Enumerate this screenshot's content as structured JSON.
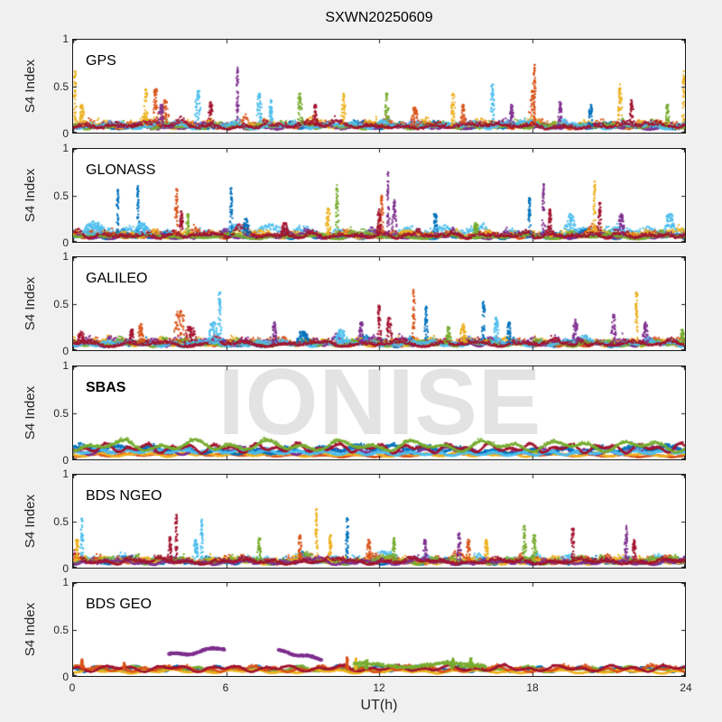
{
  "watermark": "IONISE",
  "chart_data": {
    "type": "scatter",
    "title": "SXWN20250609",
    "xlabel": "UT(h)",
    "ylabel": "S4 Index",
    "xlim": [
      0,
      24
    ],
    "ylim": [
      0,
      1
    ],
    "xticks": [
      0,
      6,
      12,
      18,
      24
    ],
    "yticks": [
      0,
      0.5,
      1
    ],
    "grid": false,
    "legend": "none",
    "axis_color": "#1a1a1a",
    "figure_bg": "#f0f0f0",
    "panel_bg": "#ffffff",
    "watermark_color": "#e3e3e3",
    "palette": {
      "blue": "#0072BD",
      "orange": "#D95319",
      "yellow": "#EDB120",
      "purple": "#7E2F8E",
      "green": "#77AC30",
      "lightblue": "#4DBEEE",
      "darkred": "#A2142F"
    },
    "panels": [
      {
        "label": "GPS",
        "bold": false,
        "bumps": 16,
        "bump_amp": 0.12,
        "points": 1100,
        "series": [
          {
            "color": "blue",
            "level": 0.06,
            "noise": 0.03
          },
          {
            "color": "orange",
            "level": 0.07,
            "noise": 0.04
          },
          {
            "color": "yellow",
            "level": 0.07,
            "noise": 0.045
          },
          {
            "color": "purple",
            "level": 0.055,
            "noise": 0.035
          },
          {
            "color": "green",
            "level": 0.06,
            "noise": 0.035
          },
          {
            "color": "lightblue",
            "level": 0.065,
            "noise": 0.04
          },
          {
            "color": "darkred",
            "level": 0.065,
            "noise": 0.04
          }
        ],
        "spikes": [
          [
            0.08,
            0.66,
            "yellow",
            0.06
          ],
          [
            0.35,
            0.3,
            "yellow",
            0.15
          ],
          [
            2.85,
            0.47,
            "yellow",
            0.1
          ],
          [
            3.25,
            0.47,
            "orange",
            0.15
          ],
          [
            3.6,
            0.35,
            "orange",
            0.2
          ],
          [
            3.45,
            0.3,
            "purple",
            0.15
          ],
          [
            4.9,
            0.45,
            "lightblue",
            0.15
          ],
          [
            5.4,
            0.33,
            "darkred",
            0.12
          ],
          [
            6.45,
            0.7,
            "purple",
            0.06
          ],
          [
            7.3,
            0.42,
            "lightblue",
            0.12
          ],
          [
            7.75,
            0.35,
            "lightblue",
            0.1
          ],
          [
            8.9,
            0.42,
            "green",
            0.12
          ],
          [
            9.5,
            0.3,
            "darkred",
            0.1
          ],
          [
            10.6,
            0.42,
            "yellow",
            0.1
          ],
          [
            12.3,
            0.42,
            "green",
            0.1
          ],
          [
            13.4,
            0.27,
            "orange",
            0.2
          ],
          [
            14.9,
            0.42,
            "yellow",
            0.1
          ],
          [
            15.3,
            0.3,
            "orange",
            0.12
          ],
          [
            16.45,
            0.52,
            "lightblue",
            0.1
          ],
          [
            17.2,
            0.3,
            "purple",
            0.1
          ],
          [
            18.1,
            0.73,
            "orange",
            0.07
          ],
          [
            18.0,
            0.45,
            "orange",
            0.15
          ],
          [
            19.1,
            0.33,
            "purple",
            0.1
          ],
          [
            20.3,
            0.3,
            "blue",
            0.1
          ],
          [
            21.45,
            0.52,
            "yellow",
            0.1
          ],
          [
            21.9,
            0.35,
            "darkred",
            0.1
          ],
          [
            23.3,
            0.3,
            "green",
            0.1
          ],
          [
            23.95,
            0.66,
            "yellow",
            0.06
          ]
        ],
        "segments": []
      },
      {
        "label": "GLONASS",
        "bold": false,
        "bumps": 14,
        "bump_amp": 0.13,
        "points": 1100,
        "series": [
          {
            "color": "lightblue",
            "level": 0.09,
            "noise": 0.05
          },
          {
            "color": "blue",
            "level": 0.05,
            "noise": 0.03
          },
          {
            "color": "orange",
            "level": 0.06,
            "noise": 0.035
          },
          {
            "color": "yellow",
            "level": 0.065,
            "noise": 0.04
          },
          {
            "color": "purple",
            "level": 0.05,
            "noise": 0.03
          },
          {
            "color": "green",
            "level": 0.05,
            "noise": 0.025
          },
          {
            "color": "darkred",
            "level": 0.06,
            "noise": 0.04
          }
        ],
        "spikes": [
          [
            0.8,
            0.22,
            "lightblue",
            0.5
          ],
          [
            1.76,
            0.56,
            "blue",
            0.06
          ],
          [
            2.54,
            0.6,
            "blue",
            0.06
          ],
          [
            2.7,
            0.2,
            "lightblue",
            0.4
          ],
          [
            4.05,
            0.57,
            "orange",
            0.08
          ],
          [
            4.25,
            0.33,
            "darkred",
            0.1
          ],
          [
            4.5,
            0.3,
            "green",
            0.08
          ],
          [
            6.2,
            0.58,
            "blue",
            0.07
          ],
          [
            6.8,
            0.25,
            "blue",
            0.15
          ],
          [
            8.3,
            0.2,
            "darkred",
            0.2
          ],
          [
            10.0,
            0.36,
            "yellow",
            0.12
          ],
          [
            10.35,
            0.61,
            "green",
            0.08
          ],
          [
            12.1,
            0.5,
            "orange",
            0.08
          ],
          [
            12.0,
            0.35,
            "darkred",
            0.12
          ],
          [
            12.35,
            0.75,
            "purple",
            0.06
          ],
          [
            12.6,
            0.45,
            "purple",
            0.12
          ],
          [
            14.2,
            0.3,
            "blue",
            0.12
          ],
          [
            15.8,
            0.2,
            "green",
            0.15
          ],
          [
            17.9,
            0.47,
            "blue",
            0.08
          ],
          [
            18.45,
            0.62,
            "purple",
            0.07
          ],
          [
            18.7,
            0.35,
            "darkred",
            0.1
          ],
          [
            19.5,
            0.3,
            "lightblue",
            0.3
          ],
          [
            20.45,
            0.65,
            "yellow",
            0.07
          ],
          [
            20.65,
            0.42,
            "darkred",
            0.08
          ],
          [
            21.5,
            0.3,
            "purple",
            0.15
          ],
          [
            23.4,
            0.3,
            "lightblue",
            0.3
          ]
        ],
        "segments": []
      },
      {
        "label": "GALILEO",
        "bold": false,
        "bumps": 14,
        "bump_amp": 0.11,
        "points": 1100,
        "series": [
          {
            "color": "blue",
            "level": 0.06,
            "noise": 0.03
          },
          {
            "color": "orange",
            "level": 0.065,
            "noise": 0.04
          },
          {
            "color": "yellow",
            "level": 0.07,
            "noise": 0.04
          },
          {
            "color": "purple",
            "level": 0.07,
            "noise": 0.045
          },
          {
            "color": "green",
            "level": 0.065,
            "noise": 0.03
          },
          {
            "color": "lightblue",
            "level": 0.065,
            "noise": 0.035
          },
          {
            "color": "darkred",
            "level": 0.06,
            "noise": 0.035
          }
        ],
        "spikes": [
          [
            0.3,
            0.2,
            "darkred",
            0.2
          ],
          [
            2.65,
            0.28,
            "orange",
            0.15
          ],
          [
            2.3,
            0.22,
            "darkred",
            0.15
          ],
          [
            4.2,
            0.42,
            "orange",
            0.35
          ],
          [
            4.6,
            0.25,
            "darkred",
            0.3
          ],
          [
            5.75,
            0.62,
            "lightblue",
            0.08
          ],
          [
            5.5,
            0.3,
            "lightblue",
            0.25
          ],
          [
            7.9,
            0.3,
            "purple",
            0.12
          ],
          [
            9.0,
            0.2,
            "blue",
            0.3
          ],
          [
            10.5,
            0.22,
            "lightblue",
            0.3
          ],
          [
            11.3,
            0.3,
            "purple",
            0.12
          ],
          [
            12.0,
            0.48,
            "darkred",
            0.1
          ],
          [
            12.4,
            0.35,
            "darkred",
            0.15
          ],
          [
            13.35,
            0.65,
            "orange",
            0.06
          ],
          [
            13.85,
            0.47,
            "blue",
            0.08
          ],
          [
            14.7,
            0.25,
            "green",
            0.15
          ],
          [
            15.3,
            0.28,
            "yellow",
            0.15
          ],
          [
            16.1,
            0.52,
            "blue",
            0.08
          ],
          [
            16.6,
            0.35,
            "lightblue",
            0.12
          ],
          [
            17.1,
            0.3,
            "blue",
            0.1
          ],
          [
            19.7,
            0.33,
            "purple",
            0.15
          ],
          [
            21.2,
            0.38,
            "purple",
            0.12
          ],
          [
            22.1,
            0.62,
            "yellow",
            0.07
          ],
          [
            22.45,
            0.3,
            "purple",
            0.15
          ],
          [
            23.9,
            0.22,
            "green",
            0.1
          ]
        ],
        "segments": []
      },
      {
        "label": "SBAS",
        "bold": true,
        "watermark": true,
        "bumps": 20,
        "bump_amp": 0.03,
        "points": 1400,
        "series": [
          {
            "color": "orange",
            "level": 0.045,
            "noise": 0.012
          },
          {
            "color": "yellow",
            "level": 0.05,
            "noise": 0.012
          },
          {
            "color": "purple",
            "level": 0.09,
            "noise": 0.02
          },
          {
            "color": "blue",
            "level": 0.1,
            "noise": 0.03
          },
          {
            "color": "lightblue",
            "level": 0.07,
            "noise": 0.025
          },
          {
            "color": "darkred",
            "level": 0.125,
            "noise": 0.018
          },
          {
            "color": "green",
            "level": 0.15,
            "noise": 0.025
          }
        ],
        "spikes": [],
        "segments": []
      },
      {
        "label": "BDS NGEO",
        "bold": false,
        "bumps": 16,
        "bump_amp": 0.11,
        "points": 1100,
        "series": [
          {
            "color": "lightblue",
            "level": 0.07,
            "noise": 0.04
          },
          {
            "color": "blue",
            "level": 0.055,
            "noise": 0.03
          },
          {
            "color": "orange",
            "level": 0.065,
            "noise": 0.04
          },
          {
            "color": "yellow",
            "level": 0.06,
            "noise": 0.035
          },
          {
            "color": "green",
            "level": 0.06,
            "noise": 0.035
          },
          {
            "color": "purple",
            "level": 0.05,
            "noise": 0.03
          },
          {
            "color": "darkred",
            "level": 0.06,
            "noise": 0.035
          }
        ],
        "spikes": [
          [
            0.15,
            0.3,
            "yellow",
            0.1
          ],
          [
            0.35,
            0.53,
            "lightblue",
            0.07
          ],
          [
            3.8,
            0.33,
            "darkred",
            0.1
          ],
          [
            4.05,
            0.57,
            "darkred",
            0.07
          ],
          [
            4.8,
            0.3,
            "lightblue",
            0.15
          ],
          [
            5.05,
            0.52,
            "lightblue",
            0.07
          ],
          [
            7.3,
            0.32,
            "green",
            0.1
          ],
          [
            8.9,
            0.35,
            "orange",
            0.1
          ],
          [
            9.55,
            0.63,
            "yellow",
            0.07
          ],
          [
            10.1,
            0.35,
            "yellow",
            0.1
          ],
          [
            10.75,
            0.53,
            "blue",
            0.07
          ],
          [
            11.6,
            0.3,
            "orange",
            0.1
          ],
          [
            12.6,
            0.32,
            "green",
            0.1
          ],
          [
            13.8,
            0.3,
            "purple",
            0.1
          ],
          [
            15.15,
            0.37,
            "purple",
            0.1
          ],
          [
            15.5,
            0.3,
            "orange",
            0.1
          ],
          [
            16.2,
            0.3,
            "yellow",
            0.1
          ],
          [
            17.7,
            0.45,
            "green",
            0.1
          ],
          [
            18.1,
            0.35,
            "green",
            0.12
          ],
          [
            19.6,
            0.42,
            "darkred",
            0.08
          ],
          [
            21.7,
            0.45,
            "purple",
            0.08
          ],
          [
            22.0,
            0.3,
            "darkred",
            0.1
          ]
        ],
        "segments": []
      },
      {
        "label": "BDS GEO",
        "bold": false,
        "bumps": 8,
        "bump_amp": 0.025,
        "points": 1300,
        "series": [
          {
            "color": "blue",
            "level": 0.08,
            "noise": 0.008
          },
          {
            "color": "green",
            "level": 0.075,
            "noise": 0.012
          },
          {
            "color": "yellow",
            "level": 0.05,
            "noise": 0.012
          },
          {
            "color": "orange",
            "level": 0.075,
            "noise": 0.02
          },
          {
            "color": "darkred",
            "level": 0.085,
            "noise": 0.012
          }
        ],
        "spikes": [
          [
            0.35,
            0.18,
            "orange",
            0.06
          ],
          [
            2.0,
            0.14,
            "orange",
            0.06
          ],
          [
            10.75,
            0.2,
            "orange",
            0.05
          ],
          [
            11.1,
            0.19,
            "yellow",
            0.05
          ],
          [
            11.5,
            0.17,
            "green",
            0.08
          ],
          [
            14.9,
            0.19,
            "green",
            0.08
          ],
          [
            15.6,
            0.19,
            "green",
            0.08
          ]
        ],
        "segments": [
          {
            "t0": 3.75,
            "t1": 5.95,
            "v0": 0.22,
            "v1": 0.3,
            "wiggle": 0.018,
            "noise": 0.008,
            "color": "purple",
            "size": 3
          },
          {
            "t0": 8.05,
            "t1": 9.75,
            "v0": 0.27,
            "v1": 0.18,
            "wiggle": 0.012,
            "noise": 0.007,
            "color": "purple",
            "size": 3
          },
          {
            "t0": 11.0,
            "t1": 16.2,
            "v0": 0.115,
            "v1": 0.12,
            "wiggle": 0.02,
            "noise": 0.018,
            "color": "green",
            "size": 2
          }
        ]
      }
    ]
  }
}
